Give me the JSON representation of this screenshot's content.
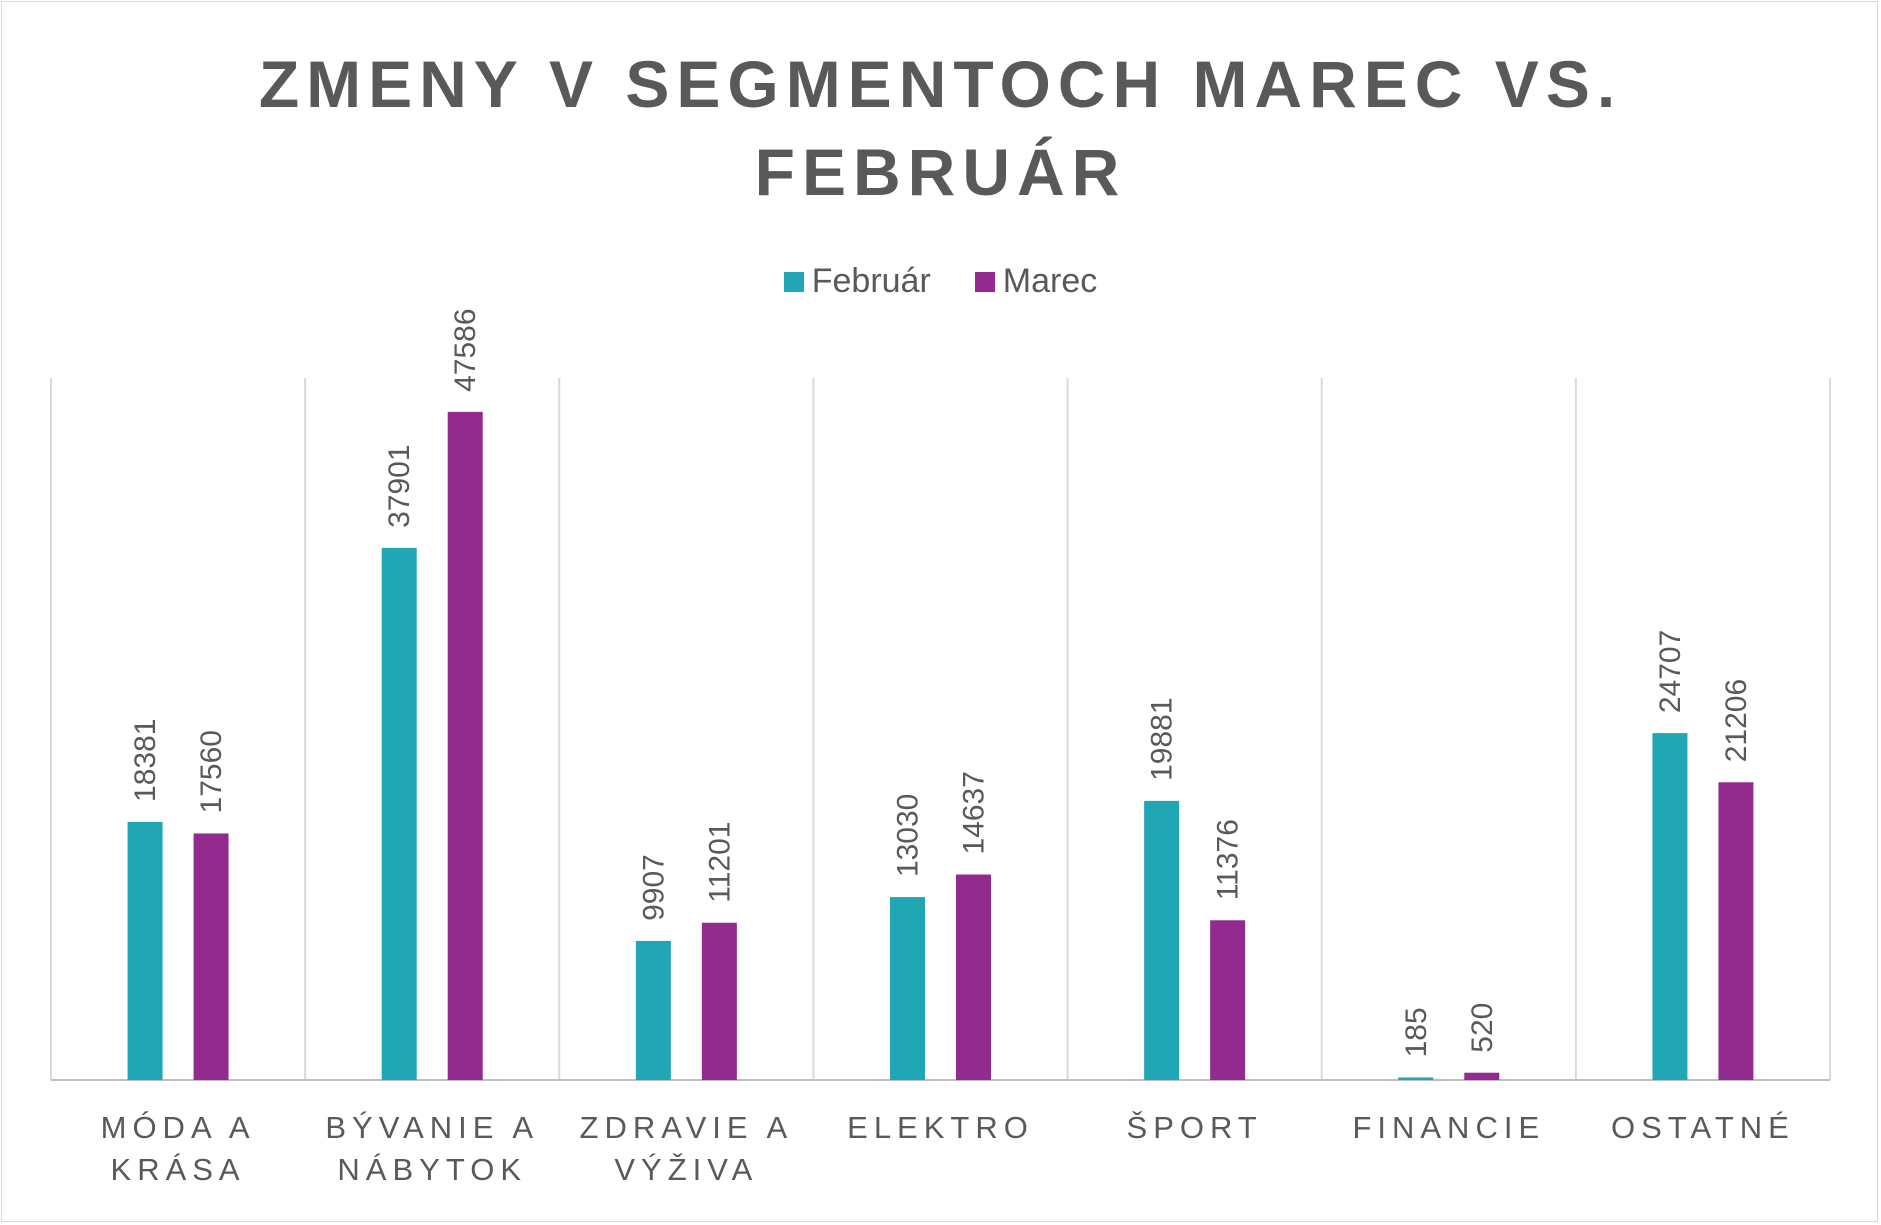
{
  "chart_data": {
    "type": "bar",
    "title_lines": [
      "ZMENY V SEGMENTOCH MAREC VS.",
      "FEBRUÁR"
    ],
    "categories": [
      [
        "MÓDA A",
        "KRÁSA"
      ],
      [
        "BÝVANIE A",
        "NÁBYTOK"
      ],
      [
        "ZDRAVIE A",
        "VÝŽIVA"
      ],
      [
        "ELEKTRO"
      ],
      [
        "ŠPORT"
      ],
      [
        "FINANCIE"
      ],
      [
        "OSTATNÉ"
      ]
    ],
    "series": [
      {
        "name": "Február",
        "color": "#21a6b5",
        "values": [
          18381,
          37901,
          9907,
          13030,
          19881,
          185,
          24707
        ]
      },
      {
        "name": "Marec",
        "color": "#922b8d",
        "values": [
          17560,
          47586,
          11201,
          14637,
          11376,
          520,
          21206
        ]
      }
    ],
    "ylim": [
      0,
      50000
    ],
    "legend_position": "top",
    "gridlines": "vertical category separators",
    "data_labels": "rotated, above bars"
  }
}
